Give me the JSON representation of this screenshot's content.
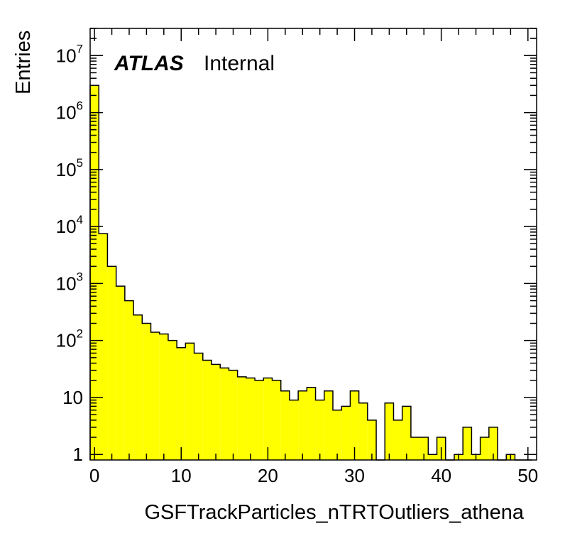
{
  "chart_data": {
    "type": "bar",
    "histogram": true,
    "title": "",
    "xlabel": "GSFTrackParticles_nTRTOutliers_athena",
    "ylabel": "Entries",
    "xlim": [
      -0.5,
      51
    ],
    "ylim": [
      0.8,
      30000000
    ],
    "yscale": "log",
    "grid": false,
    "legend": "none",
    "annotation": {
      "atlas": "ATLAS",
      "label": "Internal"
    },
    "bin_width": 1,
    "x": [
      0,
      1,
      2,
      3,
      4,
      5,
      6,
      7,
      8,
      9,
      10,
      11,
      12,
      13,
      14,
      15,
      16,
      17,
      18,
      19,
      20,
      21,
      22,
      23,
      24,
      25,
      26,
      27,
      28,
      29,
      30,
      31,
      32,
      33,
      34,
      35,
      36,
      37,
      38,
      39,
      40,
      41,
      42,
      43,
      44,
      45,
      46,
      47,
      48,
      49,
      50
    ],
    "values": [
      3000000,
      7500,
      2000,
      900,
      500,
      280,
      200,
      140,
      130,
      100,
      75,
      90,
      60,
      45,
      38,
      33,
      30,
      23,
      22,
      20,
      22,
      20,
      13,
      9,
      13,
      15,
      9,
      13,
      6,
      7,
      13,
      8,
      4,
      0,
      8,
      4,
      7,
      2,
      2,
      1,
      2,
      0,
      1,
      3,
      1,
      2,
      3,
      0,
      1,
      0,
      0
    ],
    "fill_color": "#ffff00",
    "line_color": "#000000",
    "x_ticks": [
      0,
      10,
      20,
      30,
      40,
      50
    ],
    "y_ticks": [
      {
        "value": 1,
        "base": "1",
        "exp": ""
      },
      {
        "value": 10,
        "base": "10",
        "exp": ""
      },
      {
        "value": 100,
        "base": "10",
        "exp": "2"
      },
      {
        "value": 1000,
        "base": "10",
        "exp": "3"
      },
      {
        "value": 10000,
        "base": "10",
        "exp": "4"
      },
      {
        "value": 100000,
        "base": "10",
        "exp": "5"
      },
      {
        "value": 1000000,
        "base": "10",
        "exp": "6"
      },
      {
        "value": 10000000,
        "base": "10",
        "exp": "7"
      }
    ]
  }
}
